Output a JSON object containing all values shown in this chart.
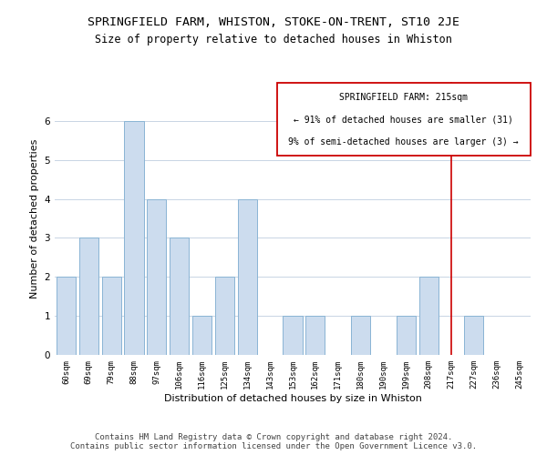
{
  "title": "SPRINGFIELD FARM, WHISTON, STOKE-ON-TRENT, ST10 2JE",
  "subtitle": "Size of property relative to detached houses in Whiston",
  "xlabel": "Distribution of detached houses by size in Whiston",
  "ylabel": "Number of detached properties",
  "categories": [
    "60sqm",
    "69sqm",
    "79sqm",
    "88sqm",
    "97sqm",
    "106sqm",
    "116sqm",
    "125sqm",
    "134sqm",
    "143sqm",
    "153sqm",
    "162sqm",
    "171sqm",
    "180sqm",
    "190sqm",
    "199sqm",
    "208sqm",
    "217sqm",
    "227sqm",
    "236sqm",
    "245sqm"
  ],
  "values": [
    2,
    3,
    2,
    6,
    4,
    3,
    1,
    2,
    4,
    0,
    1,
    1,
    0,
    1,
    0,
    1,
    2,
    0,
    1,
    0,
    0
  ],
  "bar_color": "#ccdcee",
  "bar_edge_color": "#8ab4d4",
  "reference_line_index": 17,
  "reference_label": "SPRINGFIELD FARM: 215sqm",
  "annotation_line1": "← 91% of detached houses are smaller (31)",
  "annotation_line2": "9% of semi-detached houses are larger (3) →",
  "annotation_box_color": "#cc0000",
  "ylim": [
    0,
    7
  ],
  "yticks": [
    0,
    1,
    2,
    3,
    4,
    5,
    6
  ],
  "footer_line1": "Contains HM Land Registry data © Crown copyright and database right 2024.",
  "footer_line2": "Contains public sector information licensed under the Open Government Licence v3.0.",
  "background_color": "#ffffff",
  "grid_color": "#c8d4e4",
  "title_fontsize": 9.5,
  "subtitle_fontsize": 8.5,
  "axis_label_fontsize": 8,
  "tick_fontsize": 6.5,
  "annotation_fontsize": 7,
  "footer_fontsize": 6.5
}
